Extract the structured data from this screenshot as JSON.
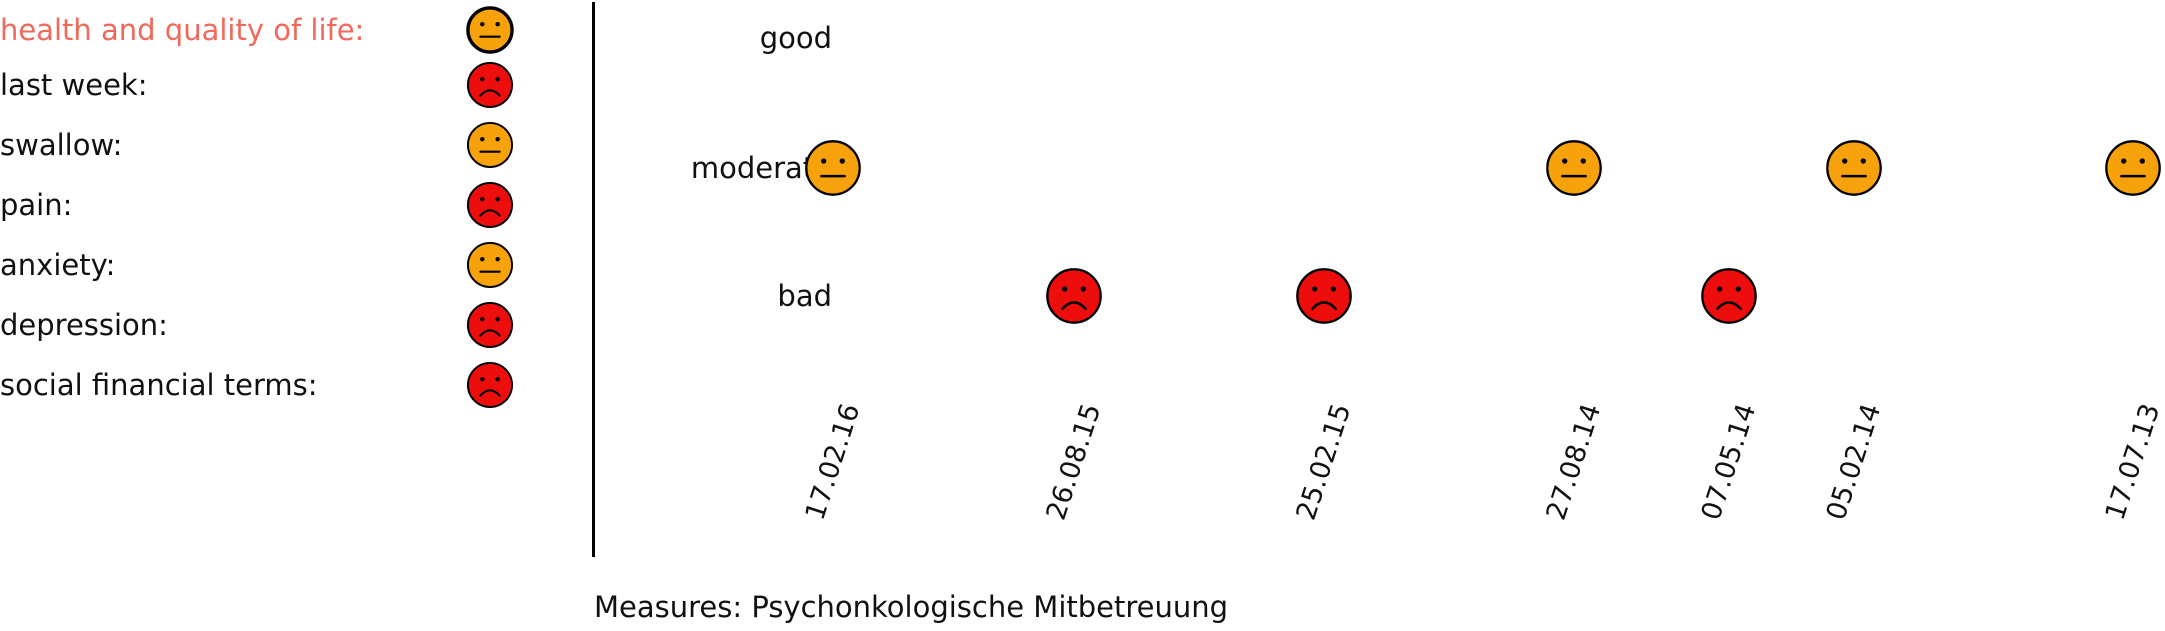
{
  "categories": [
    {
      "label": "health and quality of life:",
      "mood": "moderate",
      "highlight": true
    },
    {
      "label": "last week:",
      "mood": "bad",
      "highlight": false
    },
    {
      "label": "swallow:",
      "mood": "moderate",
      "highlight": false
    },
    {
      "label": "pain:",
      "mood": "bad",
      "highlight": false
    },
    {
      "label": "anxiety:",
      "mood": "moderate",
      "highlight": false
    },
    {
      "label": "depression:",
      "mood": "bad",
      "highlight": false
    },
    {
      "label": "social financial terms:",
      "mood": "bad",
      "highlight": false
    }
  ],
  "chart_data": {
    "type": "scatter",
    "levels": [
      "good",
      "moderate",
      "bad"
    ],
    "points": [
      {
        "date": "17.02.16",
        "level": "moderate"
      },
      {
        "date": "26.08.15",
        "level": "bad"
      },
      {
        "date": "25.02.15",
        "level": "bad"
      },
      {
        "date": "27.08.14",
        "level": "moderate"
      },
      {
        "date": "07.05.14",
        "level": "bad"
      },
      {
        "date": "05.02.14",
        "level": "moderate"
      },
      {
        "date": "17.07.13",
        "level": "moderate"
      }
    ],
    "x_order": "descending",
    "x_type": "date",
    "x_date_format": "DD.MM.YY"
  },
  "footer": {
    "text": "Measures: Psychonkologische Mitbetreuung"
  },
  "colors": {
    "moderate": "#f7a20a",
    "bad": "#ee0d0d",
    "highlight_text": "#f0695a",
    "outline": "#000000"
  },
  "icons": {
    "moderate": "neutral-face-icon",
    "bad": "sad-face-icon"
  }
}
